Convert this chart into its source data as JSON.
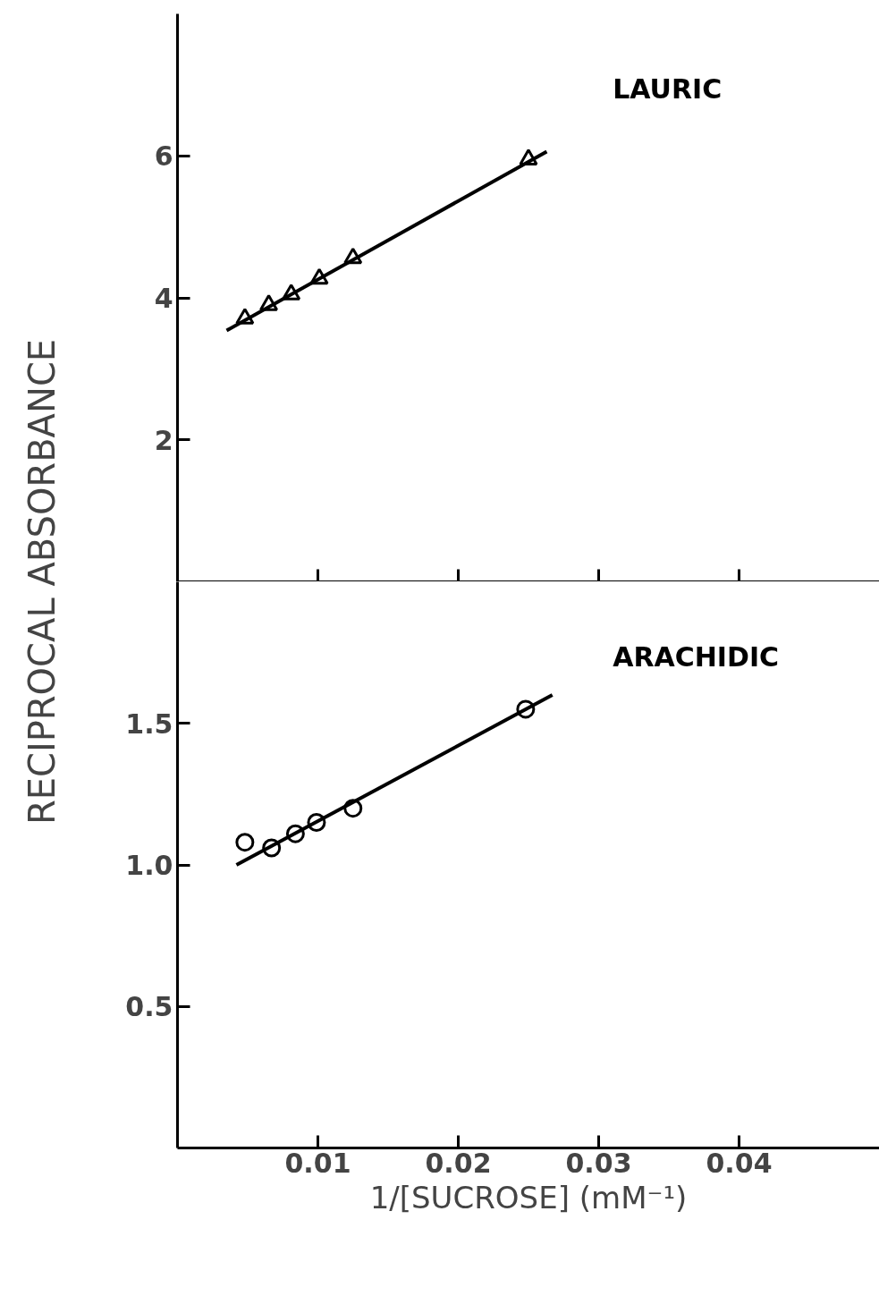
{
  "chart_data": [
    {
      "type": "scatter",
      "ylabel": "RECIPROCAL ABSORBANCE",
      "xlim": [
        0,
        0.05
      ],
      "ylim": [
        0,
        8
      ],
      "xticks": [
        {
          "value": 0.01,
          "label": null
        },
        {
          "value": 0.02,
          "label": null
        },
        {
          "value": 0.03,
          "label": null
        },
        {
          "value": 0.04,
          "label": null
        }
      ],
      "yticks": [
        2,
        4,
        6
      ],
      "tick_labels": "y",
      "series": [
        {
          "name": "LAURIC",
          "marker": "triangle",
          "color": "#000000",
          "x": [
            0.0048,
            0.0065,
            0.0081,
            0.0101,
            0.0125,
            0.025
          ],
          "values": [
            3.71,
            3.9,
            4.05,
            4.27,
            4.56,
            5.95
          ]
        },
        {
          "type": "line",
          "line_style": "solid",
          "color": "#000000",
          "x": [
            0.0035,
            0.0263
          ],
          "marker": "none",
          "values": [
            3.54,
            6.06
          ]
        }
      ]
    },
    {
      "type": "scatter",
      "xlabel": "1/[SUCROSE] (mM⁻¹)",
      "xlim": [
        0,
        0.05
      ],
      "ylim": [
        0,
        2
      ],
      "xticks": [
        {
          "value": 0.01,
          "label": "0.01"
        },
        {
          "value": 0.02,
          "label": "0.02"
        },
        {
          "value": 0.03,
          "label": "0.03"
        },
        {
          "value": 0.04,
          "label": "0.04"
        }
      ],
      "yticks": [
        {
          "value": 0.5,
          "label": "0.5"
        },
        {
          "value": 1.0,
          "label": "1.0"
        },
        {
          "value": 1.5,
          "label": "1.5"
        }
      ],
      "series": [
        {
          "name": "ARACHIDIC",
          "marker": "circle",
          "color": "#000000",
          "x": [
            0.0048,
            0.0067,
            0.0084,
            0.0099,
            0.0125,
            0.0248
          ],
          "values": [
            1.08,
            1.06,
            1.11,
            1.15,
            1.2,
            1.55
          ]
        },
        {
          "type": "line",
          "line_style": "solid",
          "color": "#000000",
          "x": [
            0.0042,
            0.0267
          ],
          "marker": "none",
          "values": [
            1.0,
            1.6
          ]
        }
      ]
    }
  ]
}
